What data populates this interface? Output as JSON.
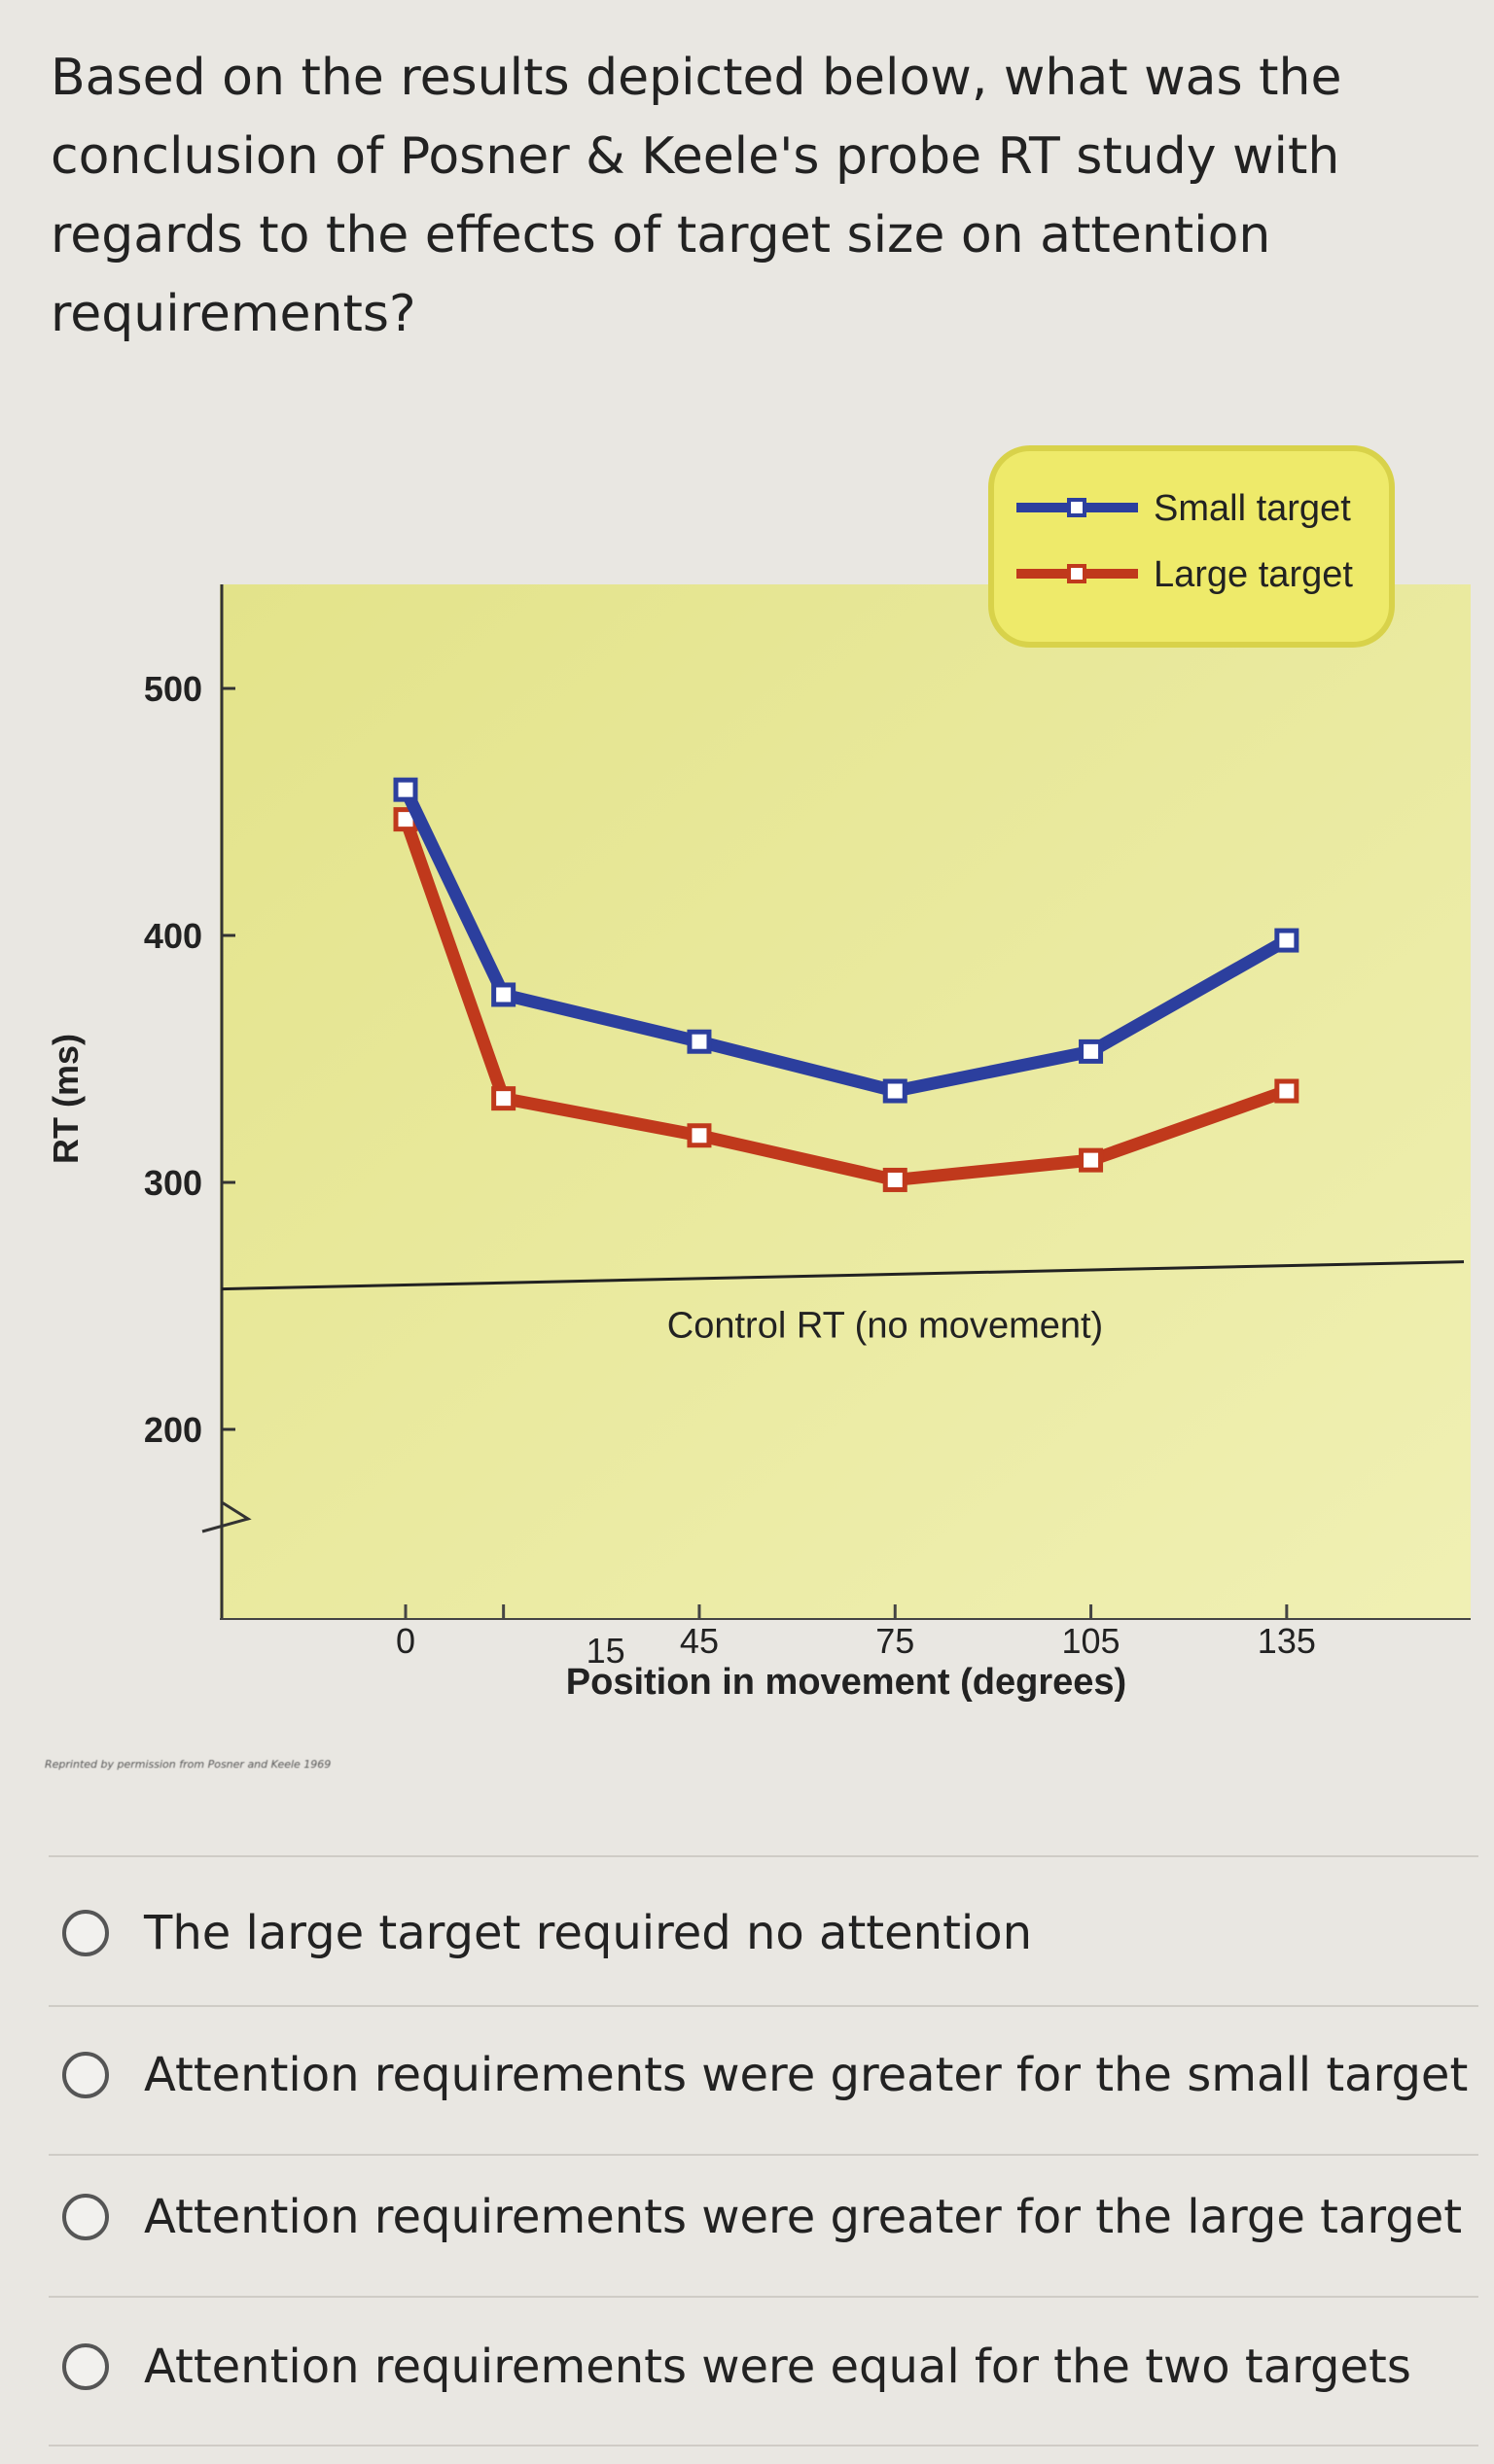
{
  "question": "Based on the results depicted below, what was the conclusion of Posner & Keele's probe RT study with regards to the effects of target size on attention requirements?",
  "chart_data": {
    "type": "line",
    "title": "",
    "xlabel": "Position in movement (degrees)",
    "ylabel": "RT (ms)",
    "x": [
      0,
      15,
      45,
      75,
      105,
      135
    ],
    "x_ticks": [
      "0",
      "15",
      "45",
      "75",
      "105",
      "135"
    ],
    "y_ticks": [
      "200",
      "300",
      "400",
      "500"
    ],
    "ylim": [
      150,
      540
    ],
    "series": [
      {
        "name": "Small target",
        "color": "#2c3f9e",
        "values": [
          459,
          376,
          357,
          337,
          353,
          398
        ]
      },
      {
        "name": "Large target",
        "color": "#c0391c",
        "values": [
          447,
          334,
          319,
          301,
          309,
          337
        ]
      }
    ],
    "reference_line": {
      "label": "Control RT (no movement)",
      "value": 260
    },
    "legend_position": "top-right",
    "background": "#ecec9a",
    "credit": "Reprinted by permission from Posner and Keele 1969"
  },
  "options": [
    {
      "label": "The large target required no attention"
    },
    {
      "label": "Attention requirements were greater for the small target"
    },
    {
      "label": "Attention requirements were greater for the large target"
    },
    {
      "label": "Attention requirements were equal for the two targets"
    }
  ]
}
